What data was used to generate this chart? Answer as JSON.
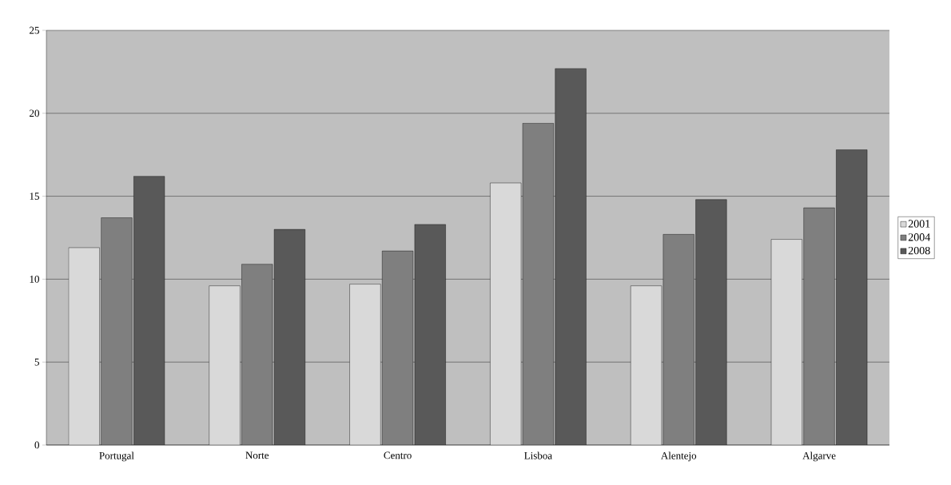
{
  "chart_data": {
    "type": "bar",
    "categories": [
      "Portugal",
      "Norte",
      "Centro",
      "Lisboa",
      "Alentejo",
      "Algarve"
    ],
    "series": [
      {
        "name": "2001",
        "color": "#d9d9d9",
        "values": [
          11.9,
          9.6,
          9.7,
          15.8,
          9.6,
          12.4
        ]
      },
      {
        "name": "2004",
        "color": "#7f7f7f",
        "values": [
          13.7,
          10.9,
          11.7,
          19.4,
          12.7,
          14.3
        ]
      },
      {
        "name": "2008",
        "color": "#595959",
        "values": [
          16.2,
          13.0,
          13.3,
          22.7,
          14.8,
          17.8
        ]
      }
    ],
    "ylim": [
      0,
      25
    ],
    "yticks": [
      0,
      5,
      10,
      15,
      20,
      25
    ],
    "grid": "y",
    "legend": "right"
  }
}
